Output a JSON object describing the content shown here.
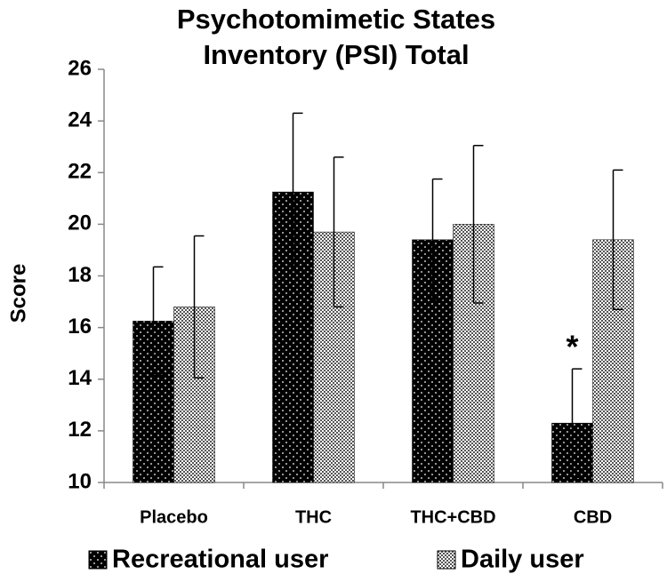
{
  "chart_data": {
    "type": "bar",
    "title": [
      "Psychotomimetic States",
      "Inventory (PSI) Total"
    ],
    "y_label": "Score",
    "categories": [
      "Placebo",
      "THC",
      "THC+CBD",
      "CBD"
    ],
    "series": [
      {
        "name": "Recreational user",
        "color": "#000000",
        "values": [
          16.25,
          21.25,
          19.4,
          12.3
        ],
        "errors": [
          2.1,
          3.05,
          2.35,
          2.1
        ]
      },
      {
        "name": "Daily user",
        "color": "#a8a8a8",
        "values": [
          16.8,
          19.7,
          20.0,
          19.4
        ],
        "errors": [
          2.75,
          2.9,
          3.05,
          2.7
        ]
      }
    ],
    "annotations": [
      {
        "text": "*",
        "category": 3,
        "series": 0
      }
    ],
    "ylim": [
      10,
      26
    ],
    "yticks": [
      10,
      12,
      14,
      16,
      18,
      20,
      22,
      24,
      26
    ],
    "grid": false,
    "legend": "bottom"
  }
}
